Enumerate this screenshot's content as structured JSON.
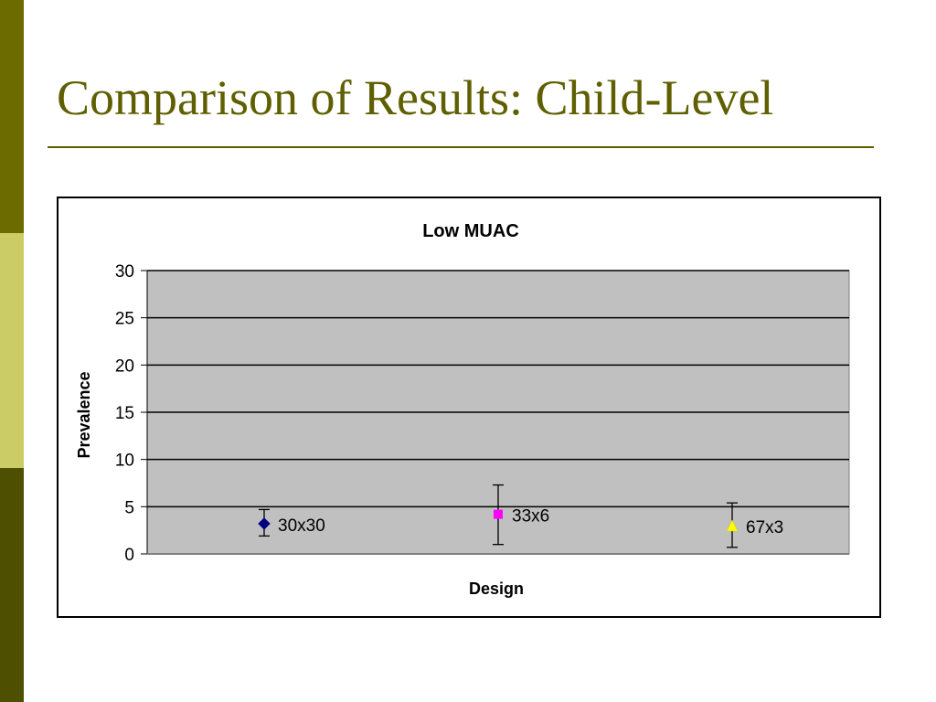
{
  "slide": {
    "title": "Comparison of Results: Child-Level",
    "colors": {
      "title": "#5f5f00",
      "sidebar_dark": "#6b6b00",
      "sidebar_light": "#cccc66",
      "sidebar_darker": "#4f4f00"
    }
  },
  "chart_data": {
    "type": "scatter",
    "title": "Low MUAC",
    "xlabel": "Design",
    "ylabel": "Prevalence",
    "ylim": [
      0,
      30
    ],
    "yticks": [
      "0",
      "5",
      "10",
      "15",
      "20",
      "25",
      "30"
    ],
    "grid": true,
    "plot_background": "#c0c0c0",
    "points": [
      {
        "label": "30x30",
        "x": 1,
        "y": 3.2,
        "err_low": 1.9,
        "err_high": 4.7,
        "marker": "diamond",
        "color": "#000080"
      },
      {
        "label": "33x6",
        "x": 2,
        "y": 4.2,
        "err_low": 1.0,
        "err_high": 7.3,
        "marker": "square",
        "color": "#ff00ff"
      },
      {
        "label": "67x3",
        "x": 3,
        "y": 3.0,
        "err_low": 0.7,
        "err_high": 5.4,
        "marker": "triangle",
        "color": "#ffff00"
      }
    ]
  }
}
